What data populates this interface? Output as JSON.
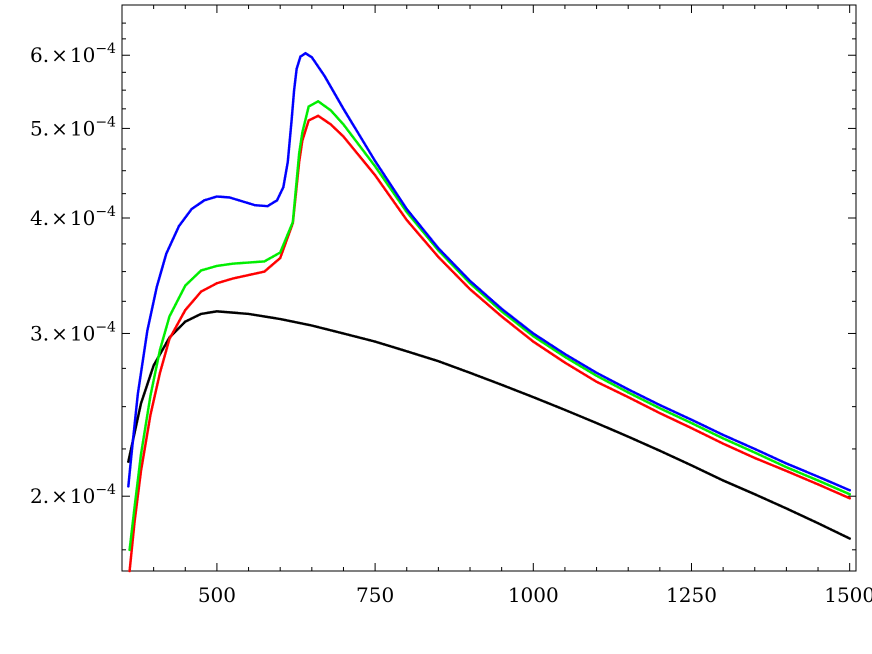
{
  "chart_data": {
    "type": "scatter",
    "title": "",
    "xlabel": "",
    "ylabel": "",
    "xlim": [
      350,
      1510
    ],
    "ylim": [
      0.000166,
      0.00068
    ],
    "y_scale": "log",
    "x_ticks": [
      {
        "value": 500,
        "label": "500"
      },
      {
        "value": 750,
        "label": "750"
      },
      {
        "value": 1000,
        "label": "1000"
      },
      {
        "value": 1250,
        "label": "1250"
      },
      {
        "value": 1500,
        "label": "1500"
      }
    ],
    "x_minor_ticks": [
      400,
      450,
      550,
      600,
      650,
      700,
      800,
      850,
      900,
      950,
      1050,
      1100,
      1150,
      1200,
      1300,
      1350,
      1400,
      1450
    ],
    "y_ticks": [
      {
        "value": 0.0002,
        "label_mantissa": "2.",
        "label_times": "×",
        "label_base": "10",
        "label_exp": "−4"
      },
      {
        "value": 0.0003,
        "label_mantissa": "3.",
        "label_times": "×",
        "label_base": "10",
        "label_exp": "−4"
      },
      {
        "value": 0.0004,
        "label_mantissa": "4.",
        "label_times": "×",
        "label_base": "10",
        "label_exp": "−4"
      },
      {
        "value": 0.0005,
        "label_mantissa": "5.",
        "label_times": "×",
        "label_base": "10",
        "label_exp": "−4"
      },
      {
        "value": 0.0006,
        "label_mantissa": "6.",
        "label_times": "×",
        "label_base": "10",
        "label_exp": "−4"
      }
    ],
    "y_minor_ticks": [
      0.000175,
      0.000225,
      0.00025,
      0.000275,
      0.000325,
      0.00035,
      0.000375,
      0.000425,
      0.00045,
      0.000475,
      0.000525,
      0.00055,
      0.000575,
      0.000625,
      0.00065
    ],
    "grid": false,
    "legend": "none",
    "series": [
      {
        "color": "#000000",
        "x": [
          360,
          380,
          400,
          425,
          450,
          475,
          500,
          525,
          550,
          600,
          650,
          700,
          750,
          800,
          850,
          900,
          950,
          1000,
          1050,
          1100,
          1150,
          1200,
          1250,
          1300,
          1350,
          1400,
          1450,
          1500
        ],
        "y": [
          0.000218,
          0.000252,
          0.000277,
          0.000297,
          0.000309,
          0.000315,
          0.000317,
          0.000316,
          0.000315,
          0.000311,
          0.000306,
          0.0003,
          0.000294,
          0.000287,
          0.00028,
          0.000272,
          0.000264,
          0.000256,
          0.000248,
          0.00024,
          0.000232,
          0.000224,
          0.000216,
          0.000208,
          0.000201,
          0.000194,
          0.000187,
          0.00018
        ]
      },
      {
        "color": "#ff0000",
        "x": [
          362,
          370,
          380,
          395,
          410,
          425,
          450,
          475,
          500,
          525,
          550,
          575,
          600,
          620,
          630,
          635,
          645,
          660,
          680,
          700,
          750,
          800,
          850,
          900,
          950,
          1000,
          1050,
          1100,
          1150,
          1200,
          1250,
          1300,
          1350,
          1400,
          1450,
          1500
        ],
        "y": [
          0.000166,
          0.000188,
          0.000213,
          0.000245,
          0.000272,
          0.000296,
          0.000318,
          0.000333,
          0.00034,
          0.000344,
          0.000347,
          0.00035,
          0.000362,
          0.000395,
          0.00046,
          0.000485,
          0.00051,
          0.000516,
          0.000505,
          0.00049,
          0.000445,
          0.000398,
          0.000363,
          0.000335,
          0.000313,
          0.000294,
          0.000279,
          0.000266,
          0.000256,
          0.000246,
          0.000237,
          0.000228,
          0.00022,
          0.000213,
          0.000206,
          0.000199
        ]
      },
      {
        "color": "#00ee00",
        "x": [
          362,
          370,
          380,
          395,
          410,
          425,
          450,
          475,
          500,
          525,
          550,
          575,
          600,
          620,
          630,
          635,
          645,
          660,
          680,
          700,
          750,
          800,
          850,
          900,
          950,
          1000,
          1050,
          1100,
          1150,
          1200,
          1250,
          1300,
          1350,
          1400,
          1450,
          1500
        ],
        "y": [
          0.000175,
          0.000195,
          0.000222,
          0.000257,
          0.000288,
          0.000313,
          0.000338,
          0.000351,
          0.000355,
          0.000357,
          0.000358,
          0.000359,
          0.000367,
          0.000396,
          0.00047,
          0.000495,
          0.000528,
          0.000535,
          0.000523,
          0.000505,
          0.000455,
          0.000406,
          0.000369,
          0.00034,
          0.000317,
          0.000298,
          0.000283,
          0.00027,
          0.000259,
          0.000249,
          0.00024,
          0.000231,
          0.000223,
          0.000215,
          0.000208,
          0.000201
        ]
      },
      {
        "color": "#0000ff",
        "x": [
          360,
          365,
          375,
          390,
          405,
          420,
          440,
          460,
          480,
          500,
          520,
          540,
          560,
          580,
          595,
          605,
          612,
          618,
          622,
          626,
          632,
          640,
          650,
          670,
          700,
          750,
          800,
          850,
          900,
          950,
          1000,
          1050,
          1100,
          1150,
          1200,
          1250,
          1300,
          1350,
          1400,
          1450,
          1500
        ],
        "y": [
          0.000205,
          0.000222,
          0.000258,
          0.000302,
          0.000337,
          0.000366,
          0.000392,
          0.000409,
          0.000418,
          0.000422,
          0.000421,
          0.000417,
          0.000413,
          0.000412,
          0.000418,
          0.000432,
          0.00046,
          0.00051,
          0.00055,
          0.00058,
          0.000598,
          0.000603,
          0.000597,
          0.00057,
          0.000525,
          0.000461,
          0.000409,
          0.000371,
          0.000342,
          0.000319,
          0.0003,
          0.000285,
          0.000272,
          0.000261,
          0.000251,
          0.000242,
          0.000233,
          0.000225,
          0.000217,
          0.00021,
          0.000203
        ]
      }
    ]
  }
}
